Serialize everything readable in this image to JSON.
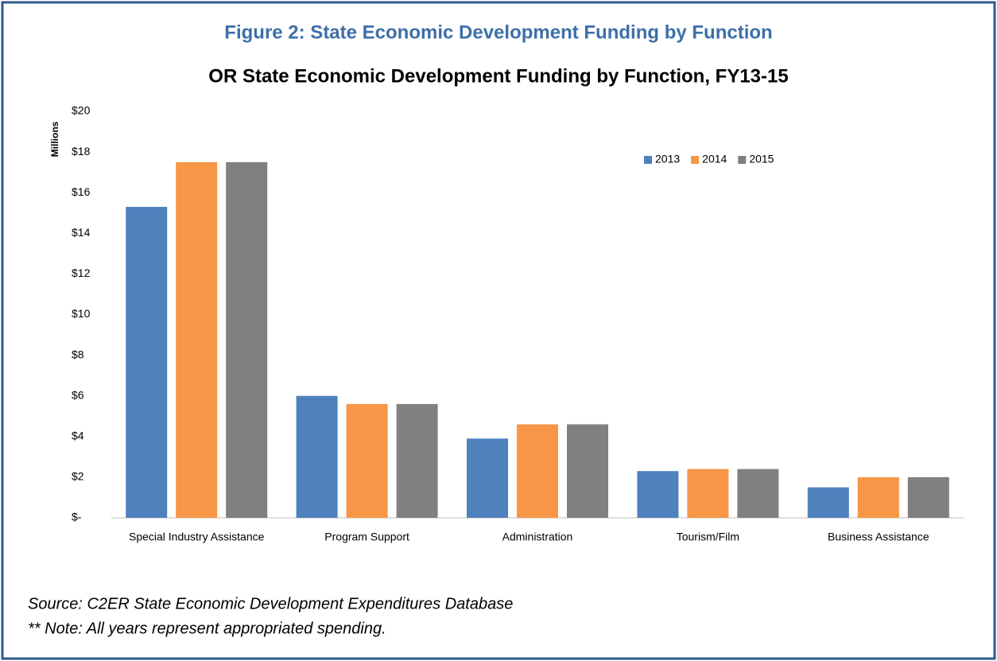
{
  "figure_title": "Figure 2: State Economic Development Funding by Function",
  "chart_data": {
    "type": "bar",
    "title": "OR State Economic Development Funding by Function, FY13-15",
    "y_label": "Millions",
    "categories": [
      "Special Industry Assistance",
      "Program Support",
      "Administration",
      "Tourism/Film",
      "Business Assistance"
    ],
    "series": [
      {
        "name": "2013",
        "color": "#4f81bd",
        "values": [
          15.3,
          6.0,
          3.9,
          2.3,
          1.5
        ]
      },
      {
        "name": "2014",
        "color": "#f79646",
        "values": [
          17.5,
          5.6,
          4.6,
          2.4,
          2.0
        ]
      },
      {
        "name": "2015",
        "color": "#808080",
        "values": [
          17.5,
          5.6,
          4.6,
          2.4,
          2.0
        ]
      }
    ],
    "ylim": [
      0,
      20
    ],
    "yticks": [
      {
        "value": 0,
        "label": "$-"
      },
      {
        "value": 2,
        "label": "$2"
      },
      {
        "value": 4,
        "label": "$4"
      },
      {
        "value": 6,
        "label": "$6"
      },
      {
        "value": 8,
        "label": "$8"
      },
      {
        "value": 10,
        "label": "$10"
      },
      {
        "value": 12,
        "label": "$12"
      },
      {
        "value": 14,
        "label": "$14"
      },
      {
        "value": 16,
        "label": "$16"
      },
      {
        "value": 18,
        "label": "$18"
      },
      {
        "value": 20,
        "label": "$20"
      }
    ],
    "legend": "top-right",
    "grid": false
  },
  "notes": [
    "Source: C2ER State Economic Development Expenditures Database",
    "** Note: All years represent appropriated spending."
  ]
}
